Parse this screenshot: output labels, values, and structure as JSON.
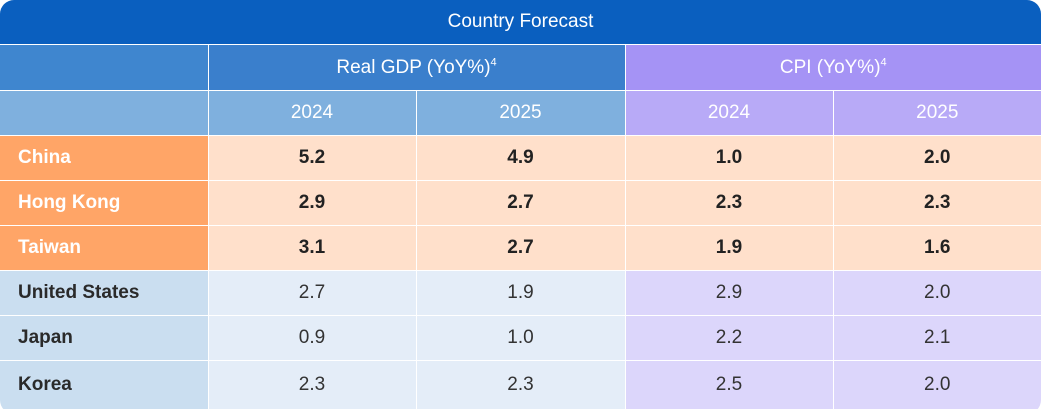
{
  "table": {
    "title": "Country Forecast",
    "groups": [
      {
        "label": "Real GDP (YoY%)",
        "note": "4"
      },
      {
        "label": "CPI (YoY%)",
        "note": "4"
      }
    ],
    "years": [
      "2024",
      "2025",
      "2024",
      "2025"
    ],
    "rows": [
      {
        "country": "China",
        "values": [
          "5.2",
          "4.9",
          "1.0",
          "2.0"
        ]
      },
      {
        "country": "Hong Kong",
        "values": [
          "2.9",
          "2.7",
          "2.3",
          "2.3"
        ]
      },
      {
        "country": "Taiwan",
        "values": [
          "3.1",
          "2.7",
          "1.9",
          "1.6"
        ]
      },
      {
        "country": "United States",
        "values": [
          "2.7",
          "1.9",
          "2.9",
          "2.0"
        ]
      },
      {
        "country": "Japan",
        "values": [
          "0.9",
          "1.0",
          "2.2",
          "2.1"
        ]
      },
      {
        "country": "Korea",
        "values": [
          "2.3",
          "2.3",
          "2.5",
          "2.0"
        ]
      }
    ]
  },
  "colors": {
    "title_bg": "#0a5fbf",
    "gdp_header": "#3a7fcc",
    "cpi_header": "#a593f5",
    "highlight_label": "#ffa567",
    "highlight_cell": "#ffe0cb",
    "gdp_cell": "#e4edf8",
    "cpi_cell": "#dcd6fb",
    "label_cell": "#cadef0"
  }
}
